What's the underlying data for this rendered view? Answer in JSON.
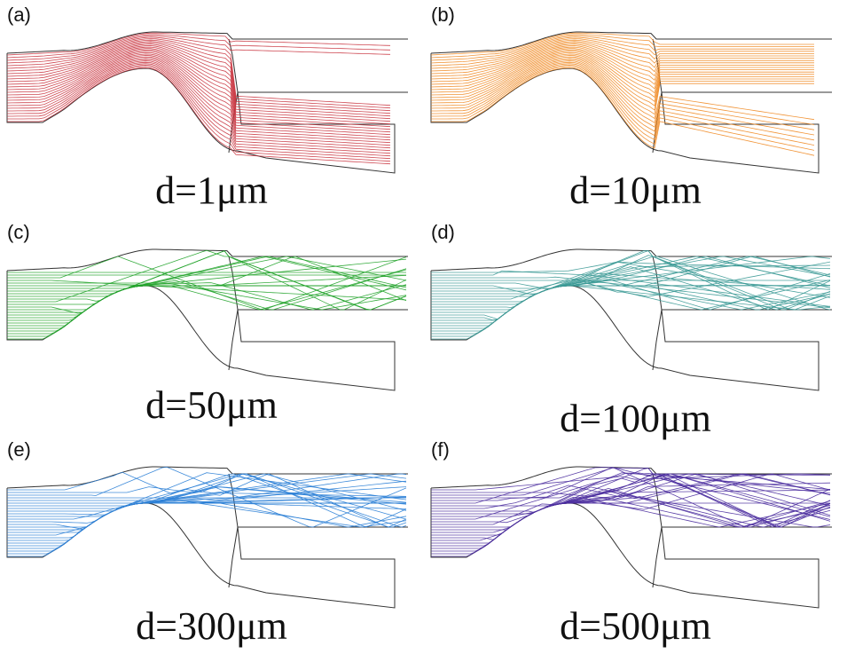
{
  "panels": [
    {
      "tag": "(a)",
      "caption": "d=1μm",
      "color": "#c9343f",
      "mode": "follow"
    },
    {
      "tag": "(b)",
      "caption": "d=10μm",
      "color": "#f08a24",
      "mode": "partial"
    },
    {
      "tag": "(c)",
      "caption": "d=50μm",
      "color": "#21a32a",
      "mode": "bounce"
    },
    {
      "tag": "(d)",
      "caption": "d=100μm",
      "color": "#3c9a96",
      "mode": "bounce"
    },
    {
      "tag": "(e)",
      "caption": "d=300μm",
      "color": "#2b7fd6",
      "mode": "bounce"
    },
    {
      "tag": "(f)",
      "caption": "d=500μm",
      "color": "#4b2e9e",
      "mode": "bounce"
    }
  ]
}
